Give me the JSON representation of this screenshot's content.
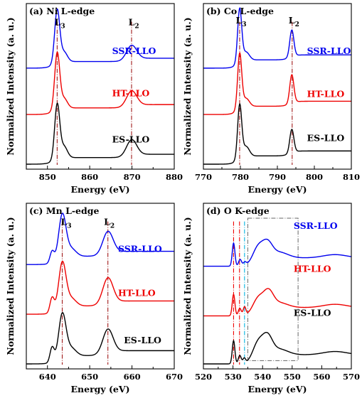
{
  "figure": {
    "shared_ylabel": "Normalized Intensity (a. u.)",
    "shared_xlabel": "Energy (eV)"
  },
  "chart_data": [
    {
      "type": "line",
      "panel_label": "(a) Ni L-edge",
      "xlabel": "Energy (eV)",
      "ylabel": "Normalized Intensity (a. u.)",
      "xlim": [
        845,
        880
      ],
      "xticks": [
        850,
        860,
        870,
        880
      ],
      "ylim": [
        0,
        1
      ],
      "peak_labels": [
        {
          "text": "L3",
          "base": "L",
          "sub": "3",
          "x": 852.5
        },
        {
          "text": "L2",
          "base": "L",
          "sub": "2",
          "x": 870
        }
      ],
      "reference_lines": [
        852.3,
        869.9
      ],
      "series": [
        {
          "name": "SSR-LLO",
          "color": "#0000ee",
          "offset": 0.61,
          "peaks": [
            [
              852.3,
              0.32,
              0.6
            ],
            [
              853.9,
              0.06,
              0.8
            ],
            [
              869.9,
              0.085,
              1.2
            ]
          ],
          "edges": [
            [
              851.5,
              0.04,
              0.9
            ],
            [
              869.3,
              0.02,
              0.9
            ]
          ]
        },
        {
          "name": "HT-LLO",
          "color": "#ee0000",
          "offset": 0.33,
          "peaks": [
            [
              852.3,
              0.34,
              0.6
            ],
            [
              853.9,
              0.06,
              0.8
            ],
            [
              869.9,
              0.09,
              1.2
            ]
          ],
          "edges": [
            [
              851.5,
              0.04,
              0.9
            ],
            [
              869.3,
              0.02,
              0.9
            ]
          ]
        },
        {
          "name": "ES-LLO",
          "color": "#000000",
          "offset": 0.03,
          "peaks": [
            [
              852.3,
              0.33,
              0.6
            ],
            [
              853.9,
              0.07,
              0.8
            ],
            [
              869.9,
              0.095,
              1.2
            ]
          ],
          "edges": [
            [
              851.5,
              0.04,
              0.9
            ],
            [
              869.3,
              0.02,
              0.9
            ]
          ]
        }
      ]
    },
    {
      "type": "line",
      "panel_label": "(b) Co L-edge",
      "xlabel": "Energy (eV)",
      "ylabel": "",
      "xlim": [
        770,
        810
      ],
      "xticks": [
        770,
        780,
        790,
        800,
        810
      ],
      "ylim": [
        0,
        1
      ],
      "peak_labels": [
        {
          "text": "L3",
          "base": "L",
          "sub": "3",
          "x": 779.7
        },
        {
          "text": "L2",
          "base": "L",
          "sub": "2",
          "x": 794
        }
      ],
      "reference_lines": [
        779.8,
        794
      ],
      "series": [
        {
          "name": "SSR-LLO",
          "color": "#0000ee",
          "offset": 0.61,
          "peaks": [
            [
              779.8,
              0.32,
              0.55
            ],
            [
              781.5,
              0.05,
              0.9
            ],
            [
              793.9,
              0.16,
              0.55
            ]
          ],
          "edges": [
            [
              779.2,
              0.05,
              0.8
            ],
            [
              793.3,
              0.03,
              0.8
            ]
          ]
        },
        {
          "name": "HT-LLO",
          "color": "#ee0000",
          "offset": 0.33,
          "peaks": [
            [
              779.8,
              0.33,
              0.55
            ],
            [
              781.5,
              0.05,
              0.9
            ],
            [
              793.9,
              0.17,
              0.55
            ]
          ],
          "edges": [
            [
              779.2,
              0.05,
              0.8
            ],
            [
              793.3,
              0.03,
              0.8
            ]
          ]
        },
        {
          "name": "ES-LLO",
          "color": "#000000",
          "offset": 0.03,
          "peaks": [
            [
              779.8,
              0.32,
              0.55
            ],
            [
              781.5,
              0.06,
              0.9
            ],
            [
              793.9,
              0.14,
              0.55
            ]
          ],
          "edges": [
            [
              779.2,
              0.05,
              0.8
            ],
            [
              793.3,
              0.03,
              0.8
            ]
          ]
        }
      ]
    },
    {
      "type": "line",
      "panel_label": "(c) Mn L-edge",
      "xlabel": "Energy (eV)",
      "ylabel": "Normalized Intensity (a. u.)",
      "xlim": [
        635,
        670
      ],
      "xticks": [
        640,
        650,
        660,
        670
      ],
      "ylim": [
        0,
        1
      ],
      "peak_labels": [
        {
          "text": "L3",
          "base": "L",
          "sub": "3",
          "x": 644
        },
        {
          "text": "L2",
          "base": "L",
          "sub": "2",
          "x": 654.2
        }
      ],
      "reference_lines": [
        643.5,
        654.3
      ],
      "series": [
        {
          "name": "SSR-LLO",
          "color": "#0000ee",
          "offset": 0.63,
          "peaks": [
            [
              641.1,
              0.07,
              0.5
            ],
            [
              643.5,
              0.26,
              0.85
            ],
            [
              645.5,
              0.05,
              1.2
            ],
            [
              654.3,
              0.13,
              1.2
            ]
          ],
          "edges": [
            [
              642.5,
              0.05,
              1.0
            ],
            [
              653.5,
              0.03,
              1.0
            ]
          ]
        },
        {
          "name": "HT-LLO",
          "color": "#ee0000",
          "offset": 0.33,
          "peaks": [
            [
              641.1,
              0.09,
              0.5
            ],
            [
              643.5,
              0.27,
              0.85
            ],
            [
              645.5,
              0.05,
              1.2
            ],
            [
              654.3,
              0.15,
              1.2
            ]
          ],
          "edges": [
            [
              642.5,
              0.05,
              1.0
            ],
            [
              653.5,
              0.03,
              1.0
            ]
          ]
        },
        {
          "name": "ES-LLO",
          "color": "#000000",
          "offset": 0.03,
          "peaks": [
            [
              641.1,
              0.09,
              0.5
            ],
            [
              643.5,
              0.26,
              0.85
            ],
            [
              645.5,
              0.05,
              1.2
            ],
            [
              654.3,
              0.14,
              1.2
            ]
          ],
          "edges": [
            [
              642.5,
              0.05,
              1.0
            ],
            [
              653.5,
              0.03,
              1.0
            ]
          ]
        }
      ]
    },
    {
      "type": "line",
      "panel_label": "(d) O K-edge",
      "xlabel": "Energy (eV)",
      "ylabel": "",
      "xlim": [
        520,
        570
      ],
      "xticks": [
        520,
        530,
        540,
        550,
        560,
        570
      ],
      "ylim": [
        0,
        1
      ],
      "peak_labels": [],
      "reference_lines": [
        530.2,
        532.2,
        533.9
      ],
      "reference_line_colors": [
        "#ee0000",
        "#ee0000",
        "#00b4e0"
      ],
      "highlight_box": {
        "x0": 535,
        "x1": 552
      },
      "series": [
        {
          "name": "SSR-LLO",
          "color": "#0000ee",
          "offset": 0.62,
          "peaks": [
            [
              530.2,
              0.14,
              0.45
            ],
            [
              532.4,
              0.04,
              0.5
            ],
            [
              534,
              0.02,
              0.5
            ],
            [
              538.5,
              0.08,
              1.8
            ],
            [
              541.7,
              0.08,
              1.6
            ],
            [
              545.5,
              0.035,
              3.0
            ],
            [
              564.5,
              0.02,
              4.0
            ]
          ],
          "edges": [
            [
              537,
              0.05,
              1.2
            ]
          ]
        },
        {
          "name": "HT-LLO",
          "color": "#ee0000",
          "offset": 0.32,
          "peaks": [
            [
              530.2,
              0.13,
              0.45
            ],
            [
              532.3,
              0.045,
              0.5
            ],
            [
              533.9,
              0.05,
              0.45
            ],
            [
              538.5,
              0.07,
              1.8
            ],
            [
              542,
              0.09,
              1.6
            ],
            [
              545.5,
              0.03,
              3.0
            ],
            [
              564.5,
              0.02,
              4.0
            ]
          ],
          "edges": [
            [
              537,
              0.05,
              1.2
            ]
          ]
        },
        {
          "name": "ES-LLO",
          "color": "#000000",
          "offset": 0.03,
          "peaks": [
            [
              530.2,
              0.14,
              0.45
            ],
            [
              532.3,
              0.05,
              0.5
            ],
            [
              533.8,
              0.03,
              0.45
            ],
            [
              538.5,
              0.09,
              1.8
            ],
            [
              541.7,
              0.1,
              1.6
            ],
            [
              545.5,
              0.035,
              3.0
            ],
            [
              564.5,
              0.02,
              4.0
            ]
          ],
          "edges": [
            [
              537,
              0.055,
              1.2
            ]
          ]
        }
      ]
    }
  ]
}
